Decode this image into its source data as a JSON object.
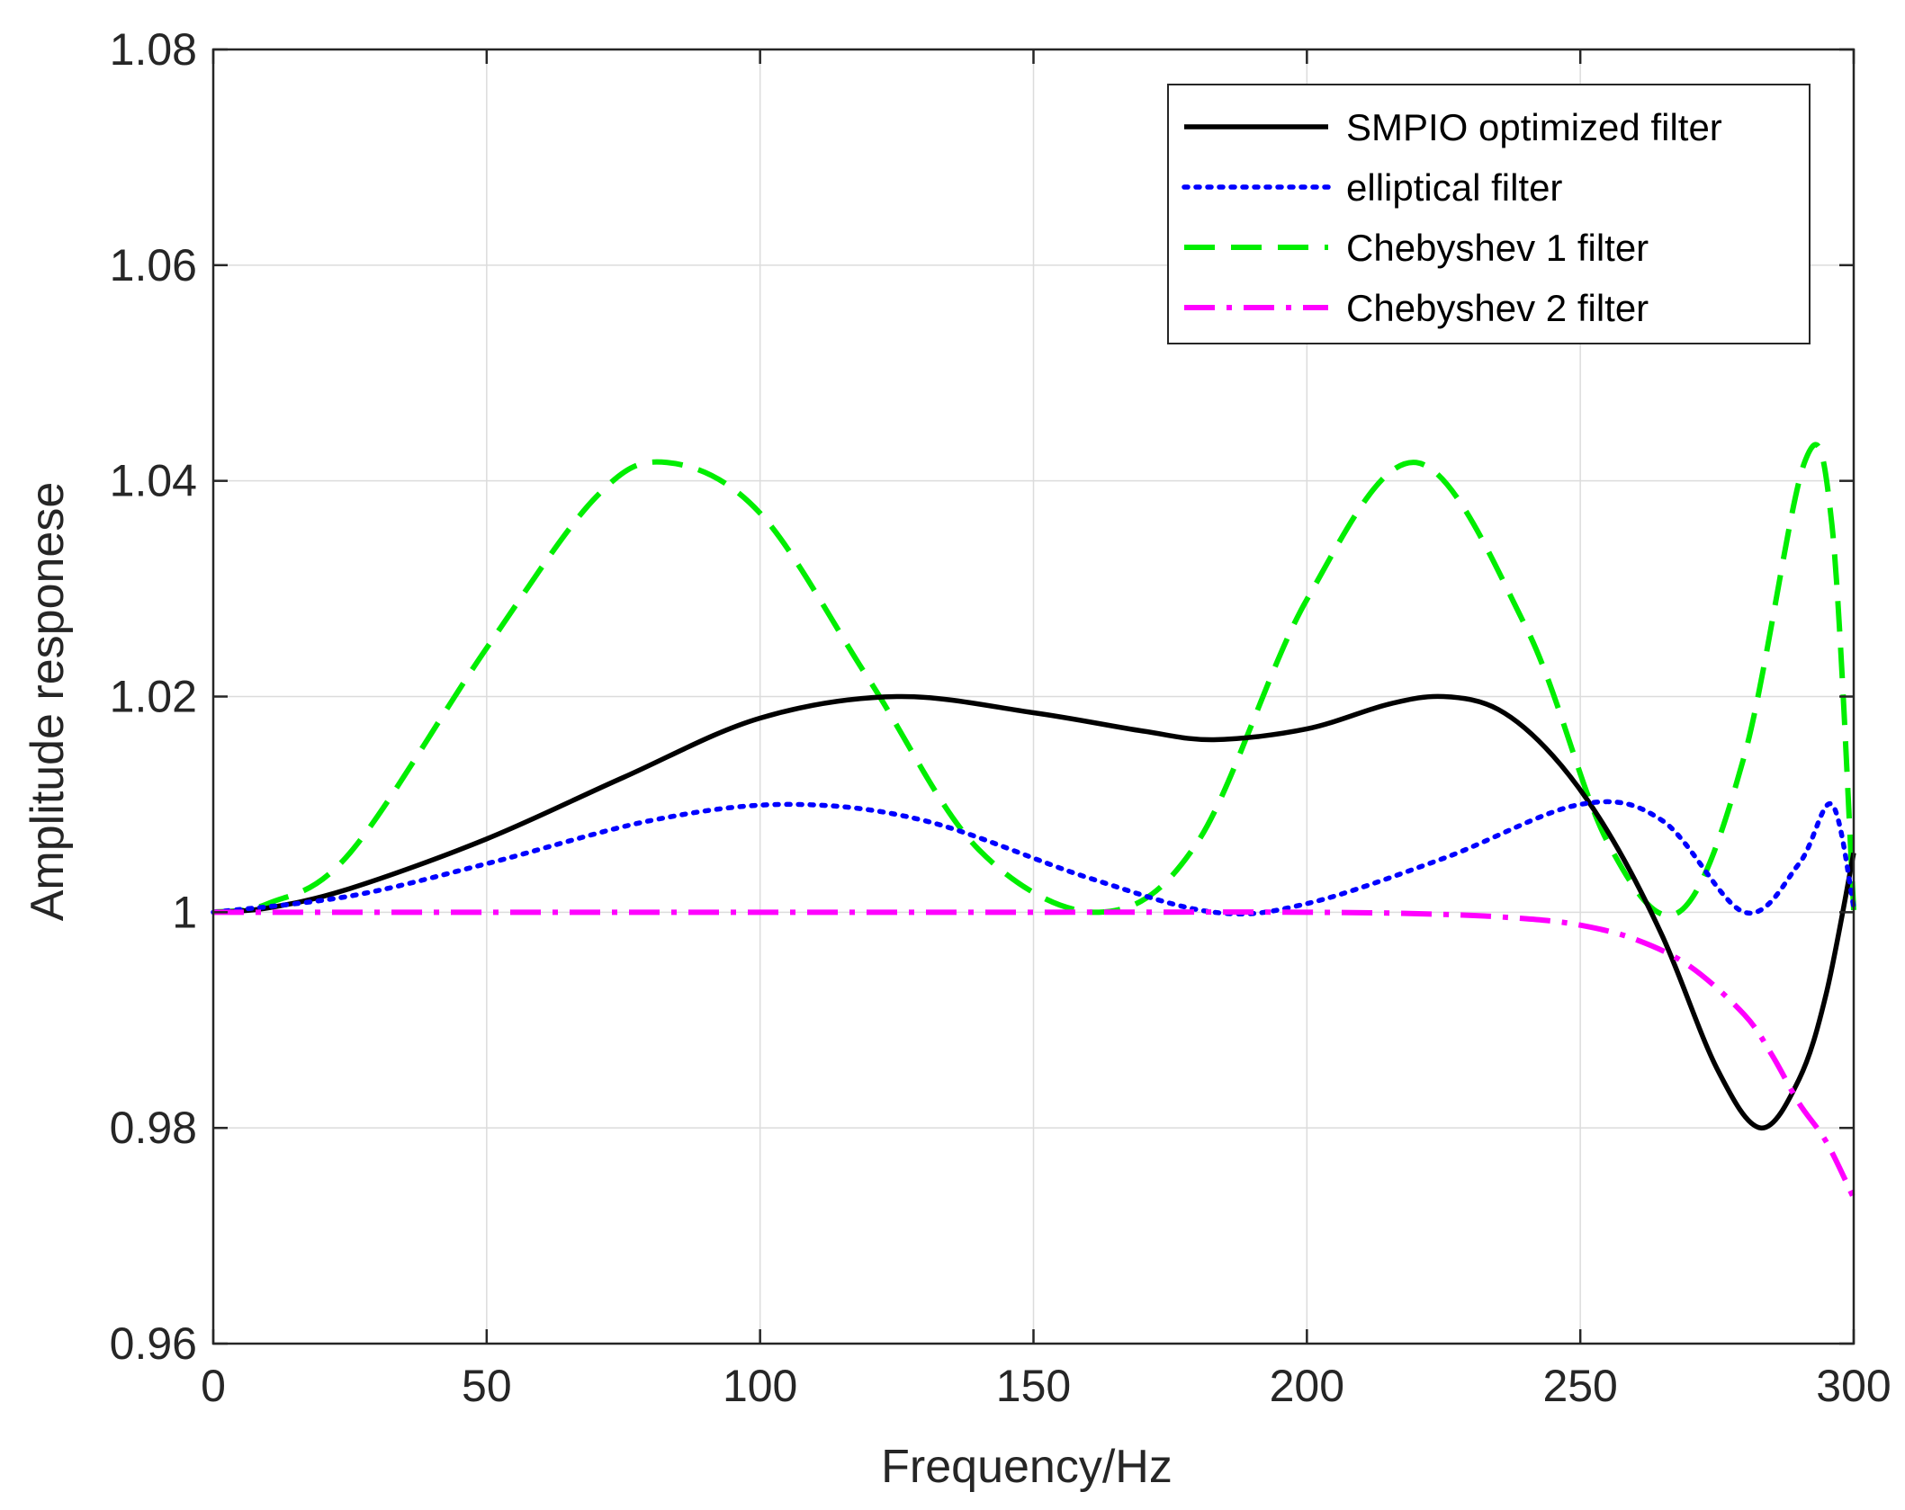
{
  "chart_data": {
    "type": "line",
    "title": "",
    "xlabel": "Frequency/Hz",
    "ylabel": "Amplitude responese",
    "xlim": [
      0,
      300
    ],
    "ylim": [
      0.96,
      1.08
    ],
    "xticks": [
      0,
      50,
      100,
      150,
      200,
      250,
      300
    ],
    "yticks": [
      0.96,
      0.98,
      1,
      1.02,
      1.04,
      1.06,
      1.08
    ],
    "xtick_labels": [
      "0",
      "50",
      "100",
      "150",
      "200",
      "250",
      "300"
    ],
    "ytick_labels": [
      "0.96",
      "0.98",
      "1",
      "1.02",
      "1.04",
      "1.06",
      "1.08"
    ],
    "grid": true,
    "legend_position": "top-right",
    "series": [
      {
        "name": "SMPIO optimized filter",
        "color": "#000000",
        "style": "solid",
        "x": [
          0,
          10,
          25,
          50,
          75,
          100,
          125,
          150,
          170,
          183,
          200,
          215,
          225,
          235,
          245,
          255,
          265,
          275,
          283,
          290,
          295,
          300
        ],
        "y": [
          1.0,
          1.0004,
          1.0022,
          1.0068,
          1.0125,
          1.018,
          1.02,
          1.0185,
          1.0168,
          1.016,
          1.017,
          1.0193,
          1.02,
          1.0188,
          1.0145,
          1.0075,
          0.9978,
          0.9855,
          0.98,
          0.9845,
          0.9925,
          1.0055
        ]
      },
      {
        "name": "elliptical filter",
        "color": "#0000ff",
        "style": "dotted",
        "x": [
          0,
          25,
          50,
          80,
          105,
          130,
          160,
          183,
          200,
          225,
          250,
          265,
          280,
          290,
          296,
          300
        ],
        "y": [
          1.0,
          1.0015,
          1.0045,
          1.0085,
          1.01,
          1.0085,
          1.0032,
          1.0,
          1.0008,
          1.005,
          1.01,
          1.0085,
          1.0,
          1.0045,
          1.01,
          1.0005
        ]
      },
      {
        "name": "Chebyshev 1 filter",
        "color": "#00ee00",
        "style": "dashed",
        "x": [
          0,
          10,
          25,
          50,
          70,
          83,
          100,
          120,
          140,
          162,
          180,
          200,
          220,
          240,
          255,
          268,
          280,
          291,
          296,
          300
        ],
        "y": [
          1.0,
          1.0008,
          1.0055,
          1.0245,
          1.0385,
          1.0417,
          1.037,
          1.0215,
          1.0058,
          1.0,
          1.0065,
          1.029,
          1.0417,
          1.0265,
          1.0065,
          1.0,
          1.0145,
          1.0417,
          1.036,
          1.0002
        ]
      },
      {
        "name": "Chebyshev 2 filter",
        "color": "#ff00ff",
        "style": "dashdot",
        "x": [
          0,
          50,
          100,
          150,
          200,
          225,
          240,
          250,
          260,
          270,
          280,
          285,
          290,
          295,
          300
        ],
        "y": [
          1.0,
          1.0,
          1.0,
          1.0,
          1.0,
          0.9998,
          0.9994,
          0.9988,
          0.9975,
          0.995,
          0.9905,
          0.9868,
          0.9823,
          0.9787,
          0.9735
        ]
      }
    ]
  }
}
